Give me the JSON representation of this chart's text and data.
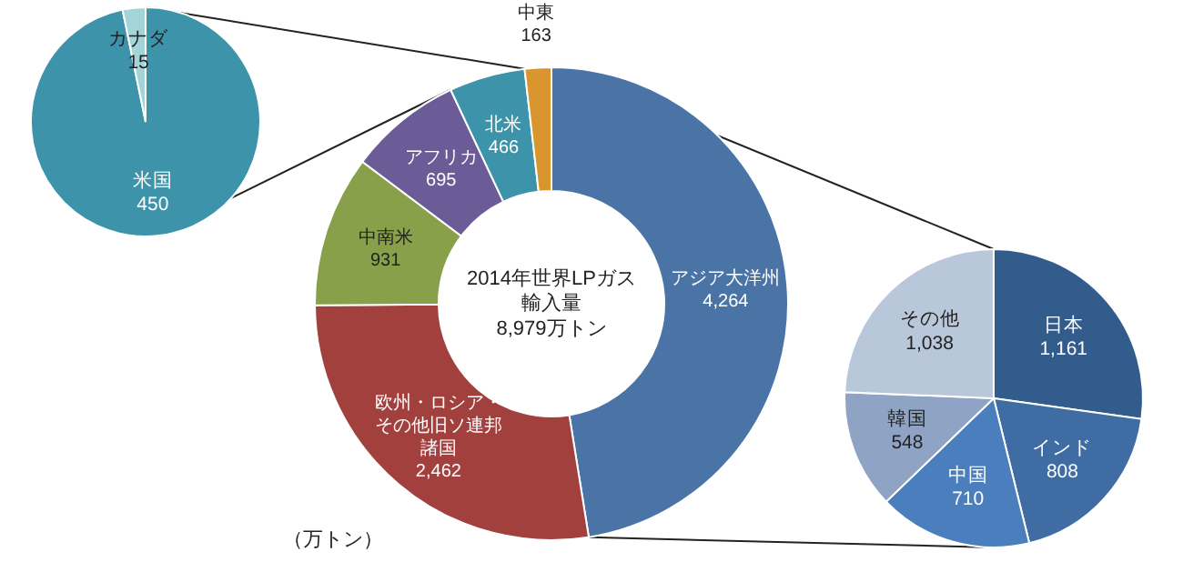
{
  "chart_data": [
    {
      "type": "donut",
      "title": "2014年世界LPガス輸入量",
      "subtitle": "8,979万トン",
      "annotations": [
        "（万トン）"
      ],
      "categories": [
        "アジア大洋州",
        "欧州・ロシア・その他旧ソ連邦諸国",
        "中南米",
        "アフリカ",
        "北米",
        "中東"
      ],
      "values": [
        4264,
        2462,
        931,
        695,
        466,
        163
      ],
      "value_labels": [
        "4,264",
        "2,462",
        "931",
        "695",
        "466",
        "163"
      ],
      "colors": [
        "#4a74a6",
        "#a2403e",
        "#88a04a",
        "#6b5b96",
        "#3c93aa",
        "#d9962f"
      ]
    },
    {
      "type": "pie",
      "categories": [
        "米国",
        "カナダ"
      ],
      "values": [
        450,
        15
      ],
      "value_labels": [
        "450",
        "15"
      ],
      "colors": [
        "#3c93aa",
        "#a2d4d8"
      ]
    },
    {
      "type": "pie",
      "categories": [
        "日本",
        "インド",
        "中国",
        "韓国",
        "その他"
      ],
      "values": [
        1161,
        808,
        710,
        548,
        1038
      ],
      "value_labels": [
        "1,161",
        "808",
        "710",
        "548",
        "1,038"
      ],
      "colors": [
        "#325c8b",
        "#3f6ca3",
        "#4a7ebd",
        "#8fa4c5",
        "#b9c7db"
      ]
    }
  ]
}
